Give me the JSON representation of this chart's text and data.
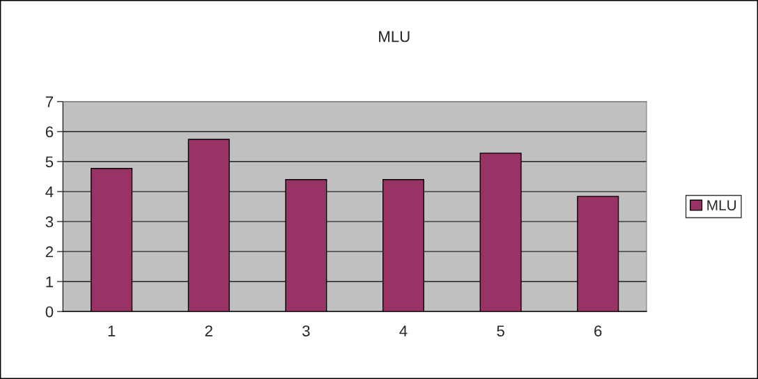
{
  "chart_data": {
    "type": "bar",
    "title": "MLU",
    "categories": [
      "1",
      "2",
      "3",
      "4",
      "5",
      "6"
    ],
    "series": [
      {
        "name": "MLU",
        "color": "#993366",
        "values": [
          4.77,
          5.74,
          4.4,
          4.4,
          5.28,
          3.84
        ]
      }
    ],
    "ylim": [
      0,
      7
    ],
    "yticks": [
      0,
      1,
      2,
      3,
      4,
      5,
      6,
      7
    ],
    "grid": "y",
    "legend": "right"
  }
}
